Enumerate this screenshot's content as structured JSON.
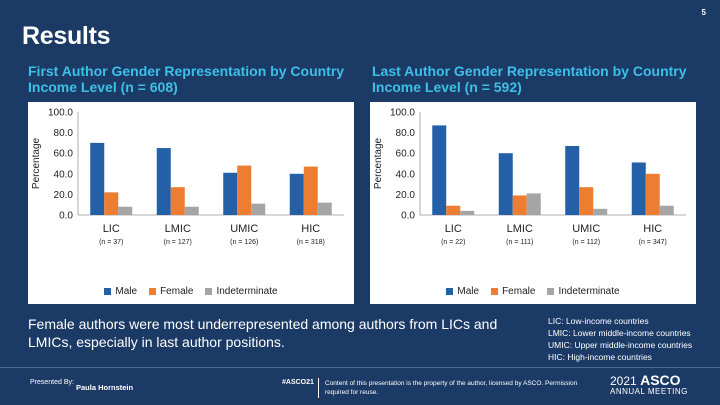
{
  "slide_number": "5",
  "title": "Results",
  "colors": {
    "male": "#2460a7",
    "female": "#ed7d31",
    "indeterminate": "#a5a5a5",
    "heading": "#3cc0e8"
  },
  "chart_data": [
    {
      "type": "bar",
      "title": "First Author Gender Representation by Country Income Level (n = 608)",
      "ylabel": "Percentage",
      "ylim": [
        0,
        100
      ],
      "yticks": [
        "0.0",
        "20.0",
        "40.0",
        "60.0",
        "80.0",
        "100.0"
      ],
      "categories": [
        "LIC",
        "LMIC",
        "UMIC",
        "HIC"
      ],
      "sublabels": [
        "(n = 37)",
        "(n = 127)",
        "(n = 126)",
        "(n = 318)"
      ],
      "series": [
        {
          "name": "Male",
          "values": [
            70,
            65,
            41,
            40
          ]
        },
        {
          "name": "Female",
          "values": [
            22,
            27,
            48,
            47
          ]
        },
        {
          "name": "Indeterminate",
          "values": [
            8,
            8,
            11,
            12
          ]
        }
      ]
    },
    {
      "type": "bar",
      "title": "Last Author Gender Representation by Country Income Level (n = 592)",
      "ylabel": "Percentage",
      "ylim": [
        0,
        100
      ],
      "yticks": [
        "0.0",
        "20.0",
        "40.0",
        "60.0",
        "80.0",
        "100.0"
      ],
      "categories": [
        "LIC",
        "LMIC",
        "UMIC",
        "HIC"
      ],
      "sublabels": [
        "(n = 22)",
        "(n = 111)",
        "(n = 112)",
        "(n = 347)"
      ],
      "series": [
        {
          "name": "Male",
          "values": [
            87,
            60,
            67,
            51
          ]
        },
        {
          "name": "Female",
          "values": [
            9,
            19,
            27,
            40
          ]
        },
        {
          "name": "Indeterminate",
          "values": [
            4,
            21,
            6,
            9
          ]
        }
      ]
    }
  ],
  "finding": "Female authors were most underrepresented among authors from LICs and LMICs, especially in last author positions.",
  "key": [
    "LIC: Low-income countries",
    "LMIC: Lower middle-income countries",
    "UMIC: Upper middle-income countries",
    "HIC: High-income countries"
  ],
  "footer": {
    "presented_by": "Presented By:",
    "presenter": "Paula Hornstein",
    "hashtag": "#ASCO21",
    "disclaimer": "Content of this presentation is the property of the author, licensed by ASCO. Permission required for reuse.",
    "logo_year": "2021",
    "logo_name": "ASCO",
    "logo_sub": "ANNUAL MEETING"
  }
}
